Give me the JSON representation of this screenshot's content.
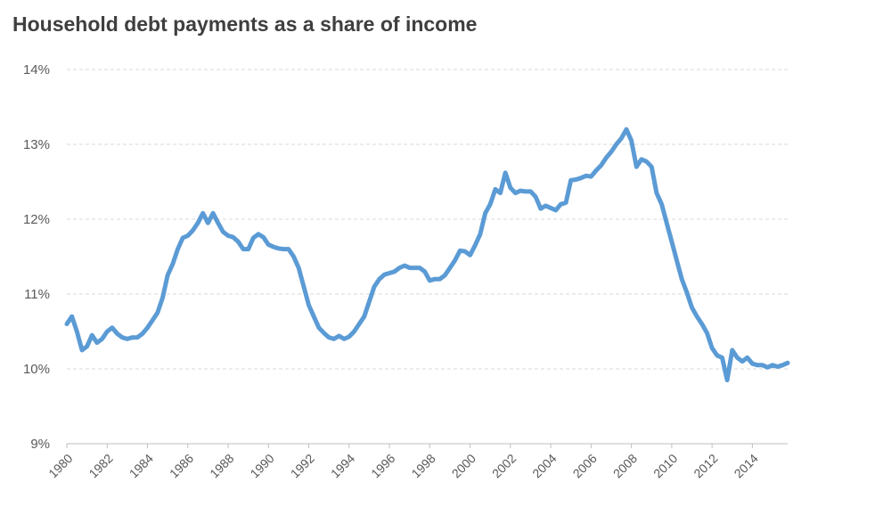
{
  "chart_data": {
    "type": "line",
    "title": "Household debt payments as a share of income",
    "xlabel": "",
    "ylabel": "",
    "ylim": [
      9,
      14
    ],
    "xlim": [
      1980,
      2015.75
    ],
    "yticks": [
      "9%",
      "10%",
      "11%",
      "12%",
      "13%",
      "14%"
    ],
    "xticks": [
      "1980",
      "1982",
      "1984",
      "1986",
      "1988",
      "1990",
      "1992",
      "1994",
      "1996",
      "1998",
      "2000",
      "2002",
      "2004",
      "2006",
      "2008",
      "2010",
      "2012",
      "2014"
    ],
    "grid": true,
    "color": "#5b9bd5",
    "series": [
      {
        "x": [
          1980.0,
          1980.25,
          1980.5,
          1980.75,
          1981.0,
          1981.25,
          1981.5,
          1981.75,
          1982.0,
          1982.25,
          1982.5,
          1982.75,
          1983.0,
          1983.25,
          1983.5,
          1983.75,
          1984.0,
          1984.25,
          1984.5,
          1984.75,
          1985.0,
          1985.25,
          1985.5,
          1985.75,
          1986.0,
          1986.25,
          1986.5,
          1986.75,
          1987.0,
          1987.25,
          1987.5,
          1987.75,
          1988.0,
          1988.25,
          1988.5,
          1988.75,
          1989.0,
          1989.25,
          1989.5,
          1989.75,
          1990.0,
          1990.25,
          1990.5,
          1990.75,
          1991.0,
          1991.25,
          1991.5,
          1991.75,
          1992.0,
          1992.25,
          1992.5,
          1992.75,
          1993.0,
          1993.25,
          1993.5,
          1993.75,
          1994.0,
          1994.25,
          1994.5,
          1994.75,
          1995.0,
          1995.25,
          1995.5,
          1995.75,
          1996.0,
          1996.25,
          1996.5,
          1996.75,
          1997.0,
          1997.25,
          1997.5,
          1997.75,
          1998.0,
          1998.25,
          1998.5,
          1998.75,
          1999.0,
          1999.25,
          1999.5,
          1999.75,
          2000.0,
          2000.25,
          2000.5,
          2000.75,
          2001.0,
          2001.25,
          2001.5,
          2001.75,
          2002.0,
          2002.25,
          2002.5,
          2002.75,
          2003.0,
          2003.25,
          2003.5,
          2003.75,
          2004.0,
          2004.25,
          2004.5,
          2004.75,
          2005.0,
          2005.25,
          2005.5,
          2005.75,
          2006.0,
          2006.25,
          2006.5,
          2006.75,
          2007.0,
          2007.25,
          2007.5,
          2007.75,
          2008.0,
          2008.25,
          2008.5,
          2008.75,
          2009.0,
          2009.25,
          2009.5,
          2009.75,
          2010.0,
          2010.25,
          2010.5,
          2010.75,
          2011.0,
          2011.25,
          2011.5,
          2011.75,
          2012.0,
          2012.25,
          2012.5,
          2012.75,
          2013.0,
          2013.25,
          2013.5,
          2013.75,
          2014.0,
          2014.25,
          2014.5,
          2014.75,
          2015.0,
          2015.25,
          2015.5,
          2015.75
        ],
        "y": [
          10.6,
          10.7,
          10.5,
          10.25,
          10.3,
          10.45,
          10.35,
          10.4,
          10.5,
          10.55,
          10.47,
          10.42,
          10.4,
          10.42,
          10.42,
          10.47,
          10.55,
          10.65,
          10.75,
          10.95,
          11.25,
          11.4,
          11.6,
          11.75,
          11.78,
          11.85,
          11.95,
          12.08,
          11.95,
          12.08,
          11.95,
          11.83,
          11.78,
          11.76,
          11.7,
          11.6,
          11.6,
          11.75,
          11.8,
          11.76,
          11.66,
          11.63,
          11.61,
          11.6,
          11.6,
          11.5,
          11.35,
          11.1,
          10.85,
          10.7,
          10.55,
          10.48,
          10.42,
          10.4,
          10.44,
          10.4,
          10.43,
          10.5,
          10.6,
          10.7,
          10.9,
          11.1,
          11.2,
          11.26,
          11.28,
          11.3,
          11.35,
          11.38,
          11.35,
          11.35,
          11.35,
          11.3,
          11.18,
          11.2,
          11.2,
          11.25,
          11.35,
          11.45,
          11.58,
          11.57,
          11.52,
          11.65,
          11.8,
          12.08,
          12.2,
          12.4,
          12.35,
          12.62,
          12.42,
          12.35,
          12.38,
          12.37,
          12.37,
          12.3,
          12.14,
          12.18,
          12.15,
          12.12,
          12.2,
          12.22,
          12.52,
          12.53,
          12.55,
          12.58,
          12.57,
          12.65,
          12.72,
          12.82,
          12.9,
          13.0,
          13.08,
          13.2,
          13.05,
          12.7,
          12.8,
          12.77,
          12.7,
          12.35,
          12.2,
          11.95,
          11.7,
          11.45,
          11.2,
          11.02,
          10.82,
          10.7,
          10.6,
          10.48,
          10.28,
          10.18,
          10.15,
          9.85,
          10.25,
          10.15,
          10.1,
          10.15,
          10.07,
          10.05,
          10.05,
          10.02,
          10.05,
          10.03,
          10.05,
          10.08
        ]
      }
    ]
  }
}
